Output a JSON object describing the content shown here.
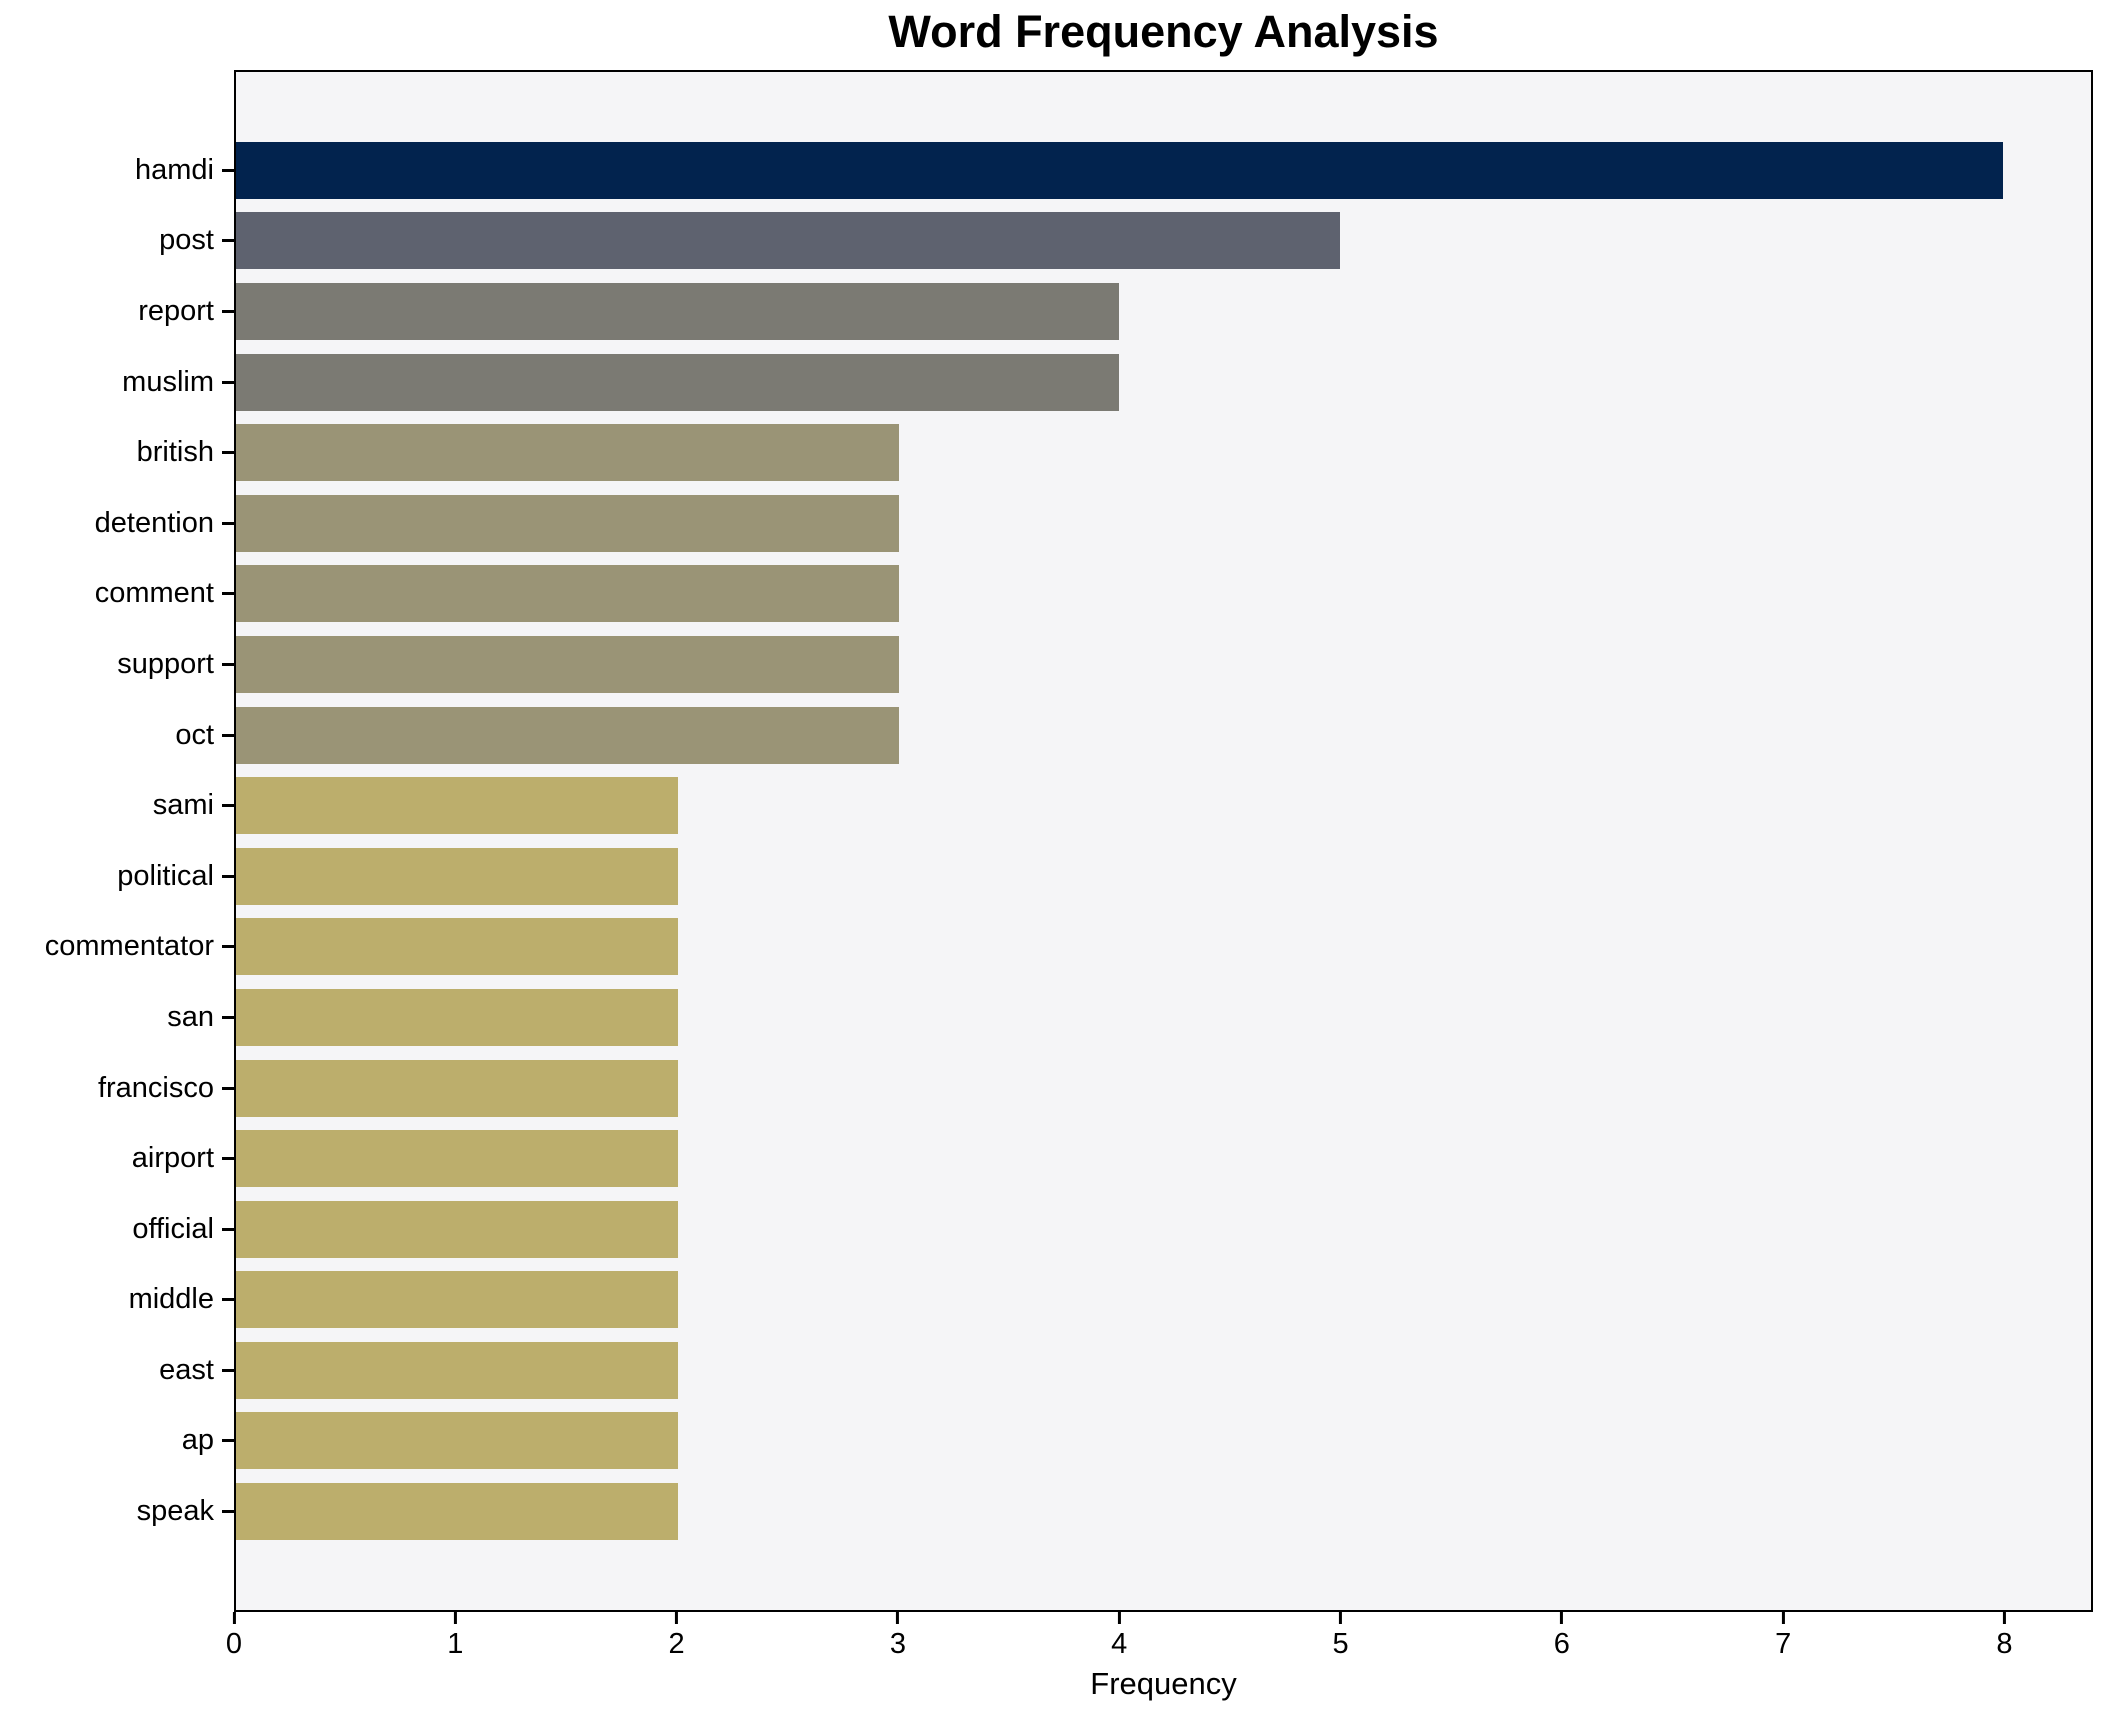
{
  "title": "Word Frequency Analysis",
  "chart_data": {
    "type": "bar",
    "orientation": "horizontal",
    "title": "Word Frequency Analysis",
    "xlabel": "Frequency",
    "ylabel": "",
    "categories": [
      "hamdi",
      "post",
      "report",
      "muslim",
      "british",
      "detention",
      "comment",
      "support",
      "oct",
      "sami",
      "political",
      "commentator",
      "san",
      "francisco",
      "airport",
      "official",
      "middle",
      "east",
      "ap",
      "speak"
    ],
    "values": [
      8,
      5,
      4,
      4,
      3,
      3,
      3,
      3,
      3,
      2,
      2,
      2,
      2,
      2,
      2,
      2,
      2,
      2,
      2,
      2
    ],
    "bar_colors": [
      "#02234e",
      "#5e626f",
      "#7b7a73",
      "#7b7a73",
      "#9a9476",
      "#9a9476",
      "#9a9476",
      "#9a9476",
      "#9a9476",
      "#bcae6c",
      "#bcae6c",
      "#bcae6c",
      "#bcae6c",
      "#bcae6c",
      "#bcae6c",
      "#bcae6c",
      "#bcae6c",
      "#bcae6c",
      "#bcae6c",
      "#bcae6c"
    ],
    "xlim": [
      0,
      8.4
    ],
    "x_ticks": [
      0,
      1,
      2,
      3,
      4,
      5,
      6,
      7,
      8
    ],
    "grid": false,
    "legend": null,
    "plot_bg": "#f5f5f7",
    "fig_bg": "#ffffff",
    "text_color": "#000000"
  }
}
